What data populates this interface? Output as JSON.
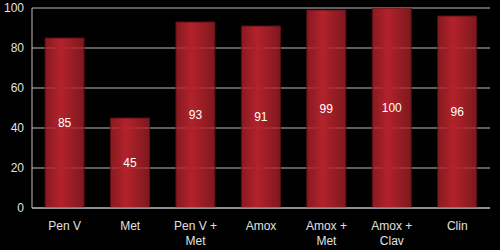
{
  "chart_data": {
    "type": "bar",
    "categories": [
      "Pen V",
      "Met",
      "Pen V + Met",
      "Amox",
      "Amox + Met",
      "Amox + Clav",
      "Clin"
    ],
    "values": [
      85,
      45,
      93,
      91,
      99,
      100,
      96
    ],
    "color": "#b3222b",
    "ylim": [
      0,
      100
    ],
    "yticks": [
      0,
      20,
      40,
      60,
      80,
      100
    ],
    "grid": true,
    "data_labels": true
  }
}
